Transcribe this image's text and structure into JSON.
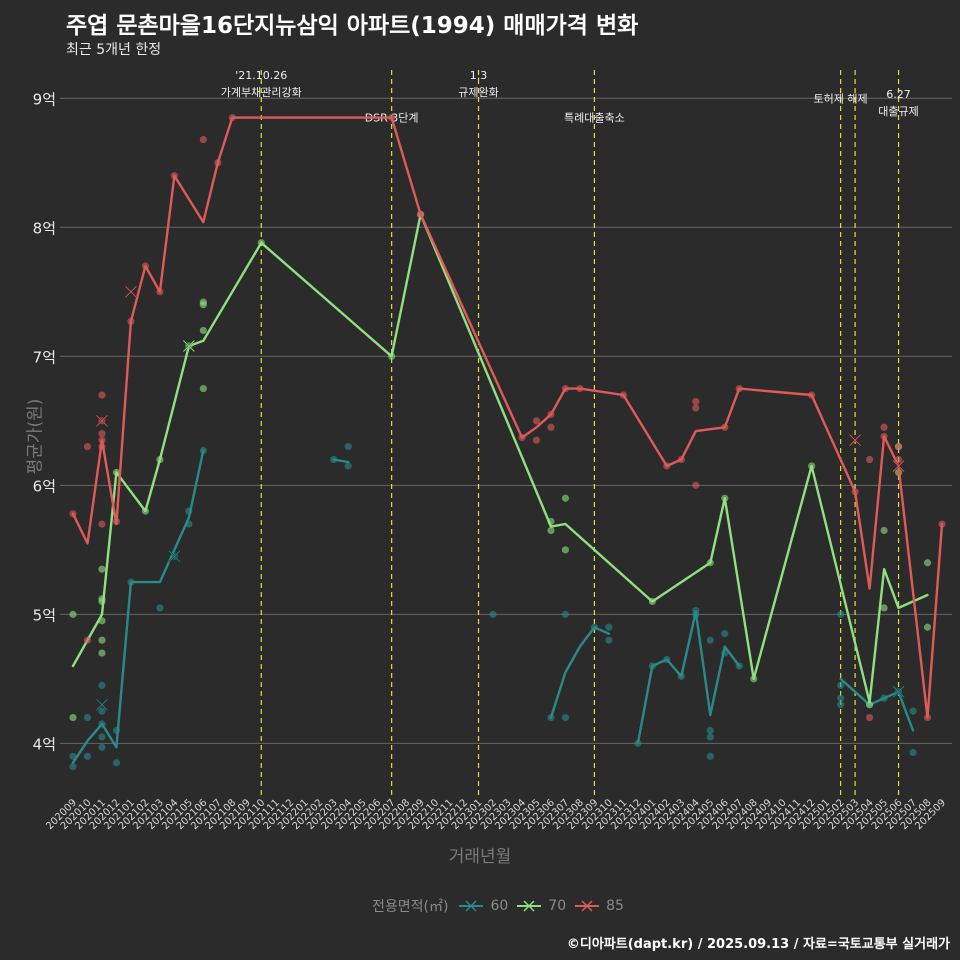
{
  "header": {
    "title": "주엽 문촌마을16단지뉴삼익 아파트(1994) 매매가격 변화",
    "subtitle": "최근 5개년 한정"
  },
  "legend": {
    "title": "전용면적(㎡)",
    "items": [
      {
        "label": "60",
        "color": "#2a8a8a"
      },
      {
        "label": "70",
        "color": "#90e080"
      },
      {
        "label": "85",
        "color": "#e05a5a"
      }
    ]
  },
  "caption": "©디아파트(dapt.kr) / 2025.09.13 / 자료=국토교통부 실거래가",
  "chart_data": {
    "type": "line",
    "xlabel": "거래년월",
    "ylabel": "평균가(원)",
    "ylim": [
      3.6,
      9.25
    ],
    "y_ticks": [
      4,
      5,
      6,
      7,
      8,
      9
    ],
    "y_tick_labels": [
      "4억",
      "5억",
      "6억",
      "7억",
      "8억",
      "9억"
    ],
    "x_categories": [
      "202009",
      "202010",
      "202011",
      "202012",
      "202101",
      "202102",
      "202103",
      "202104",
      "202105",
      "202106",
      "202107",
      "202108",
      "202109",
      "202110",
      "202111",
      "202112",
      "202201",
      "202202",
      "202203",
      "202204",
      "202205",
      "202206",
      "202207",
      "202208",
      "202209",
      "202210",
      "202211",
      "202212",
      "202301",
      "202302",
      "202303",
      "202304",
      "202305",
      "202306",
      "202307",
      "202308",
      "202309",
      "202310",
      "202311",
      "202312",
      "202401",
      "202402",
      "202403",
      "202404",
      "202405",
      "202406",
      "202407",
      "202408",
      "202409",
      "202410",
      "202411",
      "202412",
      "202501",
      "202502",
      "202503",
      "202504",
      "202505",
      "202506",
      "202507",
      "202508",
      "202509"
    ],
    "events": [
      {
        "x": 13,
        "label": "'21.10.26\n가계부채관리강화",
        "label_y": 9.05
      },
      {
        "x": 22,
        "label": "DSR 3단계",
        "label_y": 8.85
      },
      {
        "x": 28,
        "label": "1.3\n규제완화",
        "label_y": 9.05
      },
      {
        "x": 36,
        "label": "특례대출축소",
        "label_y": 8.85
      },
      {
        "x": 53,
        "label": "토허제 해제",
        "label_y": 9.0
      },
      {
        "x": 54,
        "label": "",
        "label_y": 9.0
      },
      {
        "x": 57,
        "label": "6.27\n대출규제",
        "label_y": 8.9
      }
    ],
    "series": [
      {
        "name": "60",
        "color": "#2a8a8a",
        "lines": [
          [
            [
              0,
              3.85
            ],
            [
              1,
              4.02
            ],
            [
              2,
              4.15
            ],
            [
              3,
              3.97
            ],
            [
              4,
              5.25
            ],
            [
              5,
              5.25
            ],
            [
              6,
              5.25
            ],
            [
              7,
              5.5
            ],
            [
              8,
              5.75
            ],
            [
              9,
              6.27
            ]
          ],
          [
            [
              18,
              6.2
            ],
            [
              19,
              6.18
            ]
          ],
          [
            [
              33,
              4.2
            ],
            [
              34,
              4.55
            ],
            [
              35,
              4.75
            ],
            [
              36,
              4.9
            ],
            [
              37,
              4.85
            ]
          ],
          [
            [
              39,
              4.0
            ],
            [
              40,
              4.6
            ],
            [
              41,
              4.65
            ],
            [
              42,
              4.52
            ],
            [
              43,
              5.02
            ],
            [
              44,
              4.22
            ],
            [
              45,
              4.75
            ],
            [
              46,
              4.6
            ]
          ],
          [
            [
              53,
              4.5
            ],
            [
              54,
              4.4
            ],
            [
              55,
              4.3
            ],
            [
              56,
              4.35
            ],
            [
              57,
              4.4
            ],
            [
              58,
              4.1
            ]
          ]
        ],
        "points": [
          [
            0,
            3.9
          ],
          [
            0,
            3.82
          ],
          [
            1,
            4.2
          ],
          [
            1,
            3.9
          ],
          [
            2,
            4.45
          ],
          [
            2,
            4.25
          ],
          [
            2,
            4.15
          ],
          [
            2,
            4.05
          ],
          [
            2,
            3.97
          ],
          [
            3,
            4.1
          ],
          [
            3,
            3.85
          ],
          [
            4,
            5.25
          ],
          [
            6,
            5.05
          ],
          [
            7,
            5.45
          ],
          [
            8,
            5.8
          ],
          [
            8,
            5.7
          ],
          [
            9,
            6.27
          ],
          [
            18,
            6.2
          ],
          [
            19,
            6.3
          ],
          [
            19,
            6.15
          ],
          [
            29,
            5.0
          ],
          [
            33,
            4.2
          ],
          [
            34,
            4.2
          ],
          [
            34,
            5.0
          ],
          [
            36,
            4.9
          ],
          [
            37,
            4.9
          ],
          [
            37,
            4.8
          ],
          [
            39,
            4.0
          ],
          [
            40,
            4.6
          ],
          [
            41,
            4.65
          ],
          [
            42,
            4.52
          ],
          [
            43,
            5.03
          ],
          [
            43,
            5.0
          ],
          [
            44,
            4.8
          ],
          [
            44,
            4.1
          ],
          [
            44,
            4.05
          ],
          [
            44,
            3.9
          ],
          [
            45,
            4.85
          ],
          [
            45,
            4.7
          ],
          [
            46,
            4.6
          ],
          [
            53,
            5.0
          ],
          [
            53,
            4.45
          ],
          [
            53,
            4.35
          ],
          [
            53,
            4.3
          ],
          [
            55,
            4.3
          ],
          [
            56,
            4.35
          ],
          [
            57,
            4.4
          ],
          [
            58,
            4.25
          ],
          [
            58,
            3.93
          ]
        ],
        "cross_points": [
          [
            2,
            4.3
          ],
          [
            7,
            5.45
          ],
          [
            57,
            4.4
          ]
        ]
      },
      {
        "name": "70",
        "color": "#90e080",
        "lines": [
          [
            [
              0,
              4.6
            ],
            [
              2,
              5.0
            ],
            [
              3,
              6.1
            ],
            [
              5,
              5.8
            ],
            [
              6,
              6.2
            ],
            [
              8,
              7.08
            ],
            [
              9,
              7.12
            ],
            [
              13,
              7.88
            ],
            [
              22,
              7.0
            ],
            [
              24,
              8.1
            ],
            [
              33,
              5.68
            ],
            [
              34,
              5.7
            ],
            [
              40,
              5.1
            ],
            [
              44,
              5.4
            ],
            [
              45,
              5.9
            ],
            [
              47,
              4.5
            ],
            [
              51,
              6.15
            ],
            [
              55,
              4.32
            ],
            [
              56,
              5.35
            ],
            [
              57,
              5.05
            ],
            [
              59,
              5.15
            ]
          ]
        ],
        "points": [
          [
            0,
            5.0
          ],
          [
            0,
            4.2
          ],
          [
            2,
            5.35
          ],
          [
            2,
            5.12
          ],
          [
            2,
            5.1
          ],
          [
            2,
            4.95
          ],
          [
            2,
            4.8
          ],
          [
            2,
            4.7
          ],
          [
            3,
            6.1
          ],
          [
            5,
            5.8
          ],
          [
            6,
            6.2
          ],
          [
            8,
            7.08
          ],
          [
            9,
            7.4
          ],
          [
            9,
            7.42
          ],
          [
            9,
            7.2
          ],
          [
            9,
            6.75
          ],
          [
            13,
            7.88
          ],
          [
            22,
            7.0
          ],
          [
            24,
            8.1
          ],
          [
            33,
            5.72
          ],
          [
            33,
            5.65
          ],
          [
            34,
            5.9
          ],
          [
            34,
            5.5
          ],
          [
            40,
            5.1
          ],
          [
            44,
            5.4
          ],
          [
            45,
            5.9
          ],
          [
            47,
            4.5
          ],
          [
            51,
            6.15
          ],
          [
            55,
            4.3
          ],
          [
            56,
            5.65
          ],
          [
            56,
            5.05
          ],
          [
            57,
            6.3
          ],
          [
            57,
            6.1
          ],
          [
            59,
            5.4
          ],
          [
            59,
            4.9
          ]
        ],
        "cross_points": [
          [
            8,
            7.08
          ],
          [
            57,
            6.15
          ]
        ]
      },
      {
        "name": "85",
        "color": "#e05a5a",
        "lines": [
          [
            [
              0,
              5.78
            ],
            [
              1,
              5.55
            ],
            [
              2,
              6.35
            ],
            [
              3,
              5.7
            ],
            [
              4,
              7.27
            ],
            [
              5,
              7.7
            ],
            [
              6,
              7.5
            ],
            [
              7,
              8.4
            ],
            [
              9,
              8.04
            ],
            [
              10,
              8.5
            ],
            [
              11,
              8.85
            ],
            [
              22,
              8.85
            ],
            [
              24,
              8.1
            ],
            [
              31,
              6.37
            ],
            [
              32,
              6.45
            ],
            [
              33,
              6.55
            ],
            [
              34,
              6.75
            ],
            [
              35,
              6.75
            ],
            [
              38,
              6.7
            ],
            [
              41,
              6.15
            ],
            [
              42,
              6.2
            ],
            [
              43,
              6.42
            ],
            [
              45,
              6.45
            ],
            [
              46,
              6.75
            ],
            [
              51,
              6.7
            ],
            [
              53,
              6.2
            ],
            [
              54,
              5.95
            ],
            [
              55,
              5.2
            ],
            [
              56,
              6.38
            ],
            [
              57,
              6.15
            ],
            [
              59,
              4.2
            ],
            [
              60,
              5.7
            ]
          ]
        ],
        "points": [
          [
            0,
            5.78
          ],
          [
            1,
            4.8
          ],
          [
            1,
            6.3
          ],
          [
            2,
            6.7
          ],
          [
            2,
            6.5
          ],
          [
            2,
            6.4
          ],
          [
            2,
            6.35
          ],
          [
            2,
            6.3
          ],
          [
            2,
            5.7
          ],
          [
            3,
            5.72
          ],
          [
            4,
            7.27
          ],
          [
            5,
            7.7
          ],
          [
            6,
            7.5
          ],
          [
            7,
            8.4
          ],
          [
            9,
            8.68
          ],
          [
            10,
            8.5
          ],
          [
            11,
            8.85
          ],
          [
            22,
            8.85
          ],
          [
            24,
            8.1
          ],
          [
            31,
            6.37
          ],
          [
            32,
            6.5
          ],
          [
            32,
            6.35
          ],
          [
            33,
            6.55
          ],
          [
            33,
            6.45
          ],
          [
            34,
            6.75
          ],
          [
            35,
            6.75
          ],
          [
            38,
            6.7
          ],
          [
            41,
            6.15
          ],
          [
            42,
            6.2
          ],
          [
            43,
            6.65
          ],
          [
            43,
            6.6
          ],
          [
            43,
            6.0
          ],
          [
            45,
            6.45
          ],
          [
            46,
            6.75
          ],
          [
            51,
            6.7
          ],
          [
            54,
            5.95
          ],
          [
            55,
            4.2
          ],
          [
            55,
            6.2
          ],
          [
            56,
            6.45
          ],
          [
            56,
            6.38
          ],
          [
            57,
            6.3
          ],
          [
            57,
            6.2
          ],
          [
            59,
            4.2
          ],
          [
            60,
            5.7
          ]
        ],
        "cross_points": [
          [
            2,
            6.5
          ],
          [
            4,
            7.5
          ],
          [
            54,
            6.35
          ],
          [
            57,
            6.15
          ]
        ]
      }
    ]
  }
}
